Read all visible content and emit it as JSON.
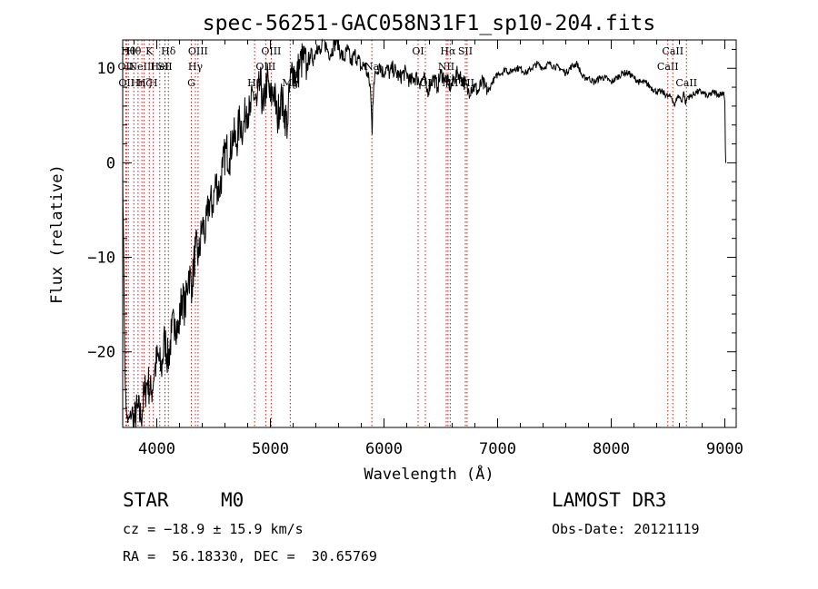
{
  "chart_data": {
    "type": "line",
    "title": "spec-56251-GAC058N31F1_sp10-204.fits",
    "xlabel": "Wavelength (Å)",
    "ylabel": "Flux (relative)",
    "xlim": [
      3700,
      9100
    ],
    "ylim": [
      -28,
      13
    ],
    "x_ticks": [
      4000,
      5000,
      6000,
      7000,
      8000,
      9000
    ],
    "x_tick_labels": [
      "4000",
      "5000",
      "6000",
      "7000",
      "8000",
      "9000"
    ],
    "y_ticks": [
      -20,
      -10,
      0,
      10
    ],
    "y_tick_labels": [
      "−20",
      "−10",
      "0",
      "10"
    ],
    "series": [
      {
        "name": "spectrum",
        "x": [
          3700,
          3705,
          3712,
          3720,
          3730,
          3745,
          3760,
          3780,
          3800,
          3830,
          3860,
          3890,
          3920,
          3950,
          3980,
          4010,
          4040,
          4070,
          4100,
          4130,
          4160,
          4190,
          4220,
          4250,
          4280,
          4310,
          4340,
          4370,
          4400,
          4430,
          4460,
          4490,
          4520,
          4550,
          4580,
          4610,
          4640,
          4670,
          4700,
          4730,
          4760,
          4790,
          4820,
          4850,
          4880,
          4910,
          4940,
          4970,
          5000,
          5030,
          5060,
          5090,
          5120,
          5150,
          5170,
          5185,
          5200,
          5230,
          5260,
          5290,
          5320,
          5350,
          5380,
          5410,
          5440,
          5470,
          5500,
          5530,
          5560,
          5590,
          5620,
          5650,
          5680,
          5710,
          5740,
          5770,
          5800,
          5830,
          5860,
          5880,
          5890,
          5895,
          5900,
          5910,
          5930,
          5960,
          5990,
          6020,
          6050,
          6080,
          6110,
          6140,
          6170,
          6200,
          6230,
          6260,
          6290,
          6320,
          6350,
          6380,
          6410,
          6440,
          6470,
          6500,
          6530,
          6560,
          6590,
          6620,
          6650,
          6680,
          6710,
          6740,
          6770,
          6800,
          6830,
          6860,
          6890,
          6920,
          6950,
          6980,
          7010,
          7040,
          7070,
          7100,
          7150,
          7200,
          7250,
          7300,
          7350,
          7400,
          7450,
          7500,
          7550,
          7600,
          7650,
          7700,
          7750,
          7800,
          7850,
          7900,
          7950,
          8000,
          8050,
          8100,
          8150,
          8200,
          8250,
          8300,
          8350,
          8400,
          8450,
          8500,
          8530,
          8545,
          8560,
          8580,
          8600,
          8620,
          8640,
          8655,
          8670,
          8700,
          8750,
          8800,
          8850,
          8900,
          8950,
          8990,
          9000,
          9005,
          9008
        ],
        "values": [
          -1.0,
          -6.0,
          -14.0,
          -22.0,
          -26.0,
          -27.5,
          -27.0,
          -26.5,
          -27.5,
          -26.0,
          -27.0,
          -24.5,
          -23.0,
          -24.5,
          -22.0,
          -20.5,
          -22.0,
          -18.5,
          -21.0,
          -18.0,
          -16.5,
          -18.0,
          -14.0,
          -15.5,
          -11.5,
          -13.0,
          -9.0,
          -10.0,
          -6.5,
          -7.5,
          -4.0,
          -4.5,
          -2.0,
          -3.0,
          -0.5,
          1.5,
          0.5,
          3.0,
          2.0,
          4.5,
          3.5,
          6.0,
          5.0,
          7.5,
          6.0,
          8.5,
          5.5,
          9.0,
          6.5,
          8.0,
          4.5,
          7.0,
          5.5,
          4.0,
          8.0,
          9.5,
          10.0,
          9.0,
          10.5,
          11.0,
          10.0,
          11.5,
          11.0,
          12.5,
          11.5,
          13.0,
          12.0,
          11.5,
          12.5,
          13.0,
          11.5,
          11.0,
          12.0,
          10.5,
          11.5,
          11.0,
          10.0,
          10.5,
          9.0,
          8.0,
          5.0,
          3.0,
          6.0,
          8.5,
          9.5,
          10.5,
          9.5,
          10.0,
          9.5,
          10.0,
          9.5,
          9.0,
          9.5,
          9.5,
          8.5,
          9.0,
          9.0,
          8.5,
          9.0,
          7.5,
          8.5,
          9.0,
          8.0,
          9.5,
          9.0,
          8.5,
          8.0,
          9.0,
          9.5,
          9.0,
          8.5,
          7.5,
          8.0,
          8.0,
          7.5,
          8.5,
          8.0,
          7.5,
          8.5,
          9.0,
          9.5,
          9.5,
          10.0,
          9.5,
          10.0,
          10.0,
          9.5,
          10.0,
          10.5,
          10.0,
          10.5,
          10.2,
          10.0,
          9.5,
          10.2,
          10.5,
          9.0,
          9.0,
          8.5,
          9.0,
          9.0,
          8.5,
          9.0,
          9.5,
          9.5,
          9.0,
          8.5,
          8.5,
          8.0,
          7.5,
          7.5,
          7.0,
          7.0,
          6.5,
          6.0,
          7.0,
          7.0,
          6.5,
          7.5,
          6.2,
          7.0,
          7.0,
          7.5,
          7.5,
          7.0,
          7.5,
          7.2,
          7.5,
          6.5,
          1.5,
          0.0
        ]
      }
    ],
    "line_markers": [
      {
        "x": 3727,
        "label": "OII",
        "row": 2
      },
      {
        "x": 3734,
        "label": "OII",
        "row": 3
      },
      {
        "x": 3750,
        "label": "Hθ",
        "row": 1
      },
      {
        "x": 3798,
        "label": "Hθ",
        "row": 1
      },
      {
        "x": 3835,
        "label": "Hη",
        "row": 3
      },
      {
        "x": 3869,
        "label": "NeIII",
        "row": 2
      },
      {
        "x": 3889,
        "label": "Hζ",
        "row": 3
      },
      {
        "x": 3934,
        "label": "K",
        "row": 1
      },
      {
        "x": 3969,
        "label": "H",
        "row": 3
      },
      {
        "x": 4026,
        "label": "HeI",
        "row": 2
      },
      {
        "x": 4072,
        "label": "SII",
        "row": 2
      },
      {
        "x": 4102,
        "label": "Hδ",
        "row": 1
      },
      {
        "x": 4304,
        "label": "G",
        "row": 3
      },
      {
        "x": 4340,
        "label": "Hγ",
        "row": 2
      },
      {
        "x": 4363,
        "label": "OIII",
        "row": 1
      },
      {
        "x": 4861,
        "label": "Hβ",
        "row": 3
      },
      {
        "x": 4959,
        "label": "OIII",
        "row": 2
      },
      {
        "x": 5007,
        "label": "OIII",
        "row": 1
      },
      {
        "x": 5175,
        "label": "Mg",
        "row": 3
      },
      {
        "x": 5893,
        "label": "Na",
        "row": 2
      },
      {
        "x": 6300,
        "label": "OI",
        "row": 1
      },
      {
        "x": 6364,
        "label": "OI",
        "row": 3
      },
      {
        "x": 6548,
        "label": "NII",
        "row": 2
      },
      {
        "x": 6563,
        "label": "Hα",
        "row": 1
      },
      {
        "x": 6583,
        "label": "NII",
        "row": 3
      },
      {
        "x": 6716,
        "label": "SII",
        "row": 1
      },
      {
        "x": 6731,
        "label": "SII",
        "row": 3
      },
      {
        "x": 8498,
        "label": "CaII",
        "row": 2
      },
      {
        "x": 8542,
        "label": "CaII",
        "row": 1
      },
      {
        "x": 8662,
        "label": "CaII",
        "row": 3
      }
    ]
  },
  "info": {
    "object_class": "STAR",
    "subclass": "M0",
    "survey": "LAMOST DR3",
    "redshift": "cz = −18.9 ± 15.9 km/s",
    "obs_date": "Obs-Date: 20121119",
    "coords": "RA =  56.18330, DEC =  30.65769"
  },
  "colors": {
    "spectrum": "#000000",
    "markers": "#b22222",
    "axes": "#000000",
    "background": "#ffffff"
  }
}
